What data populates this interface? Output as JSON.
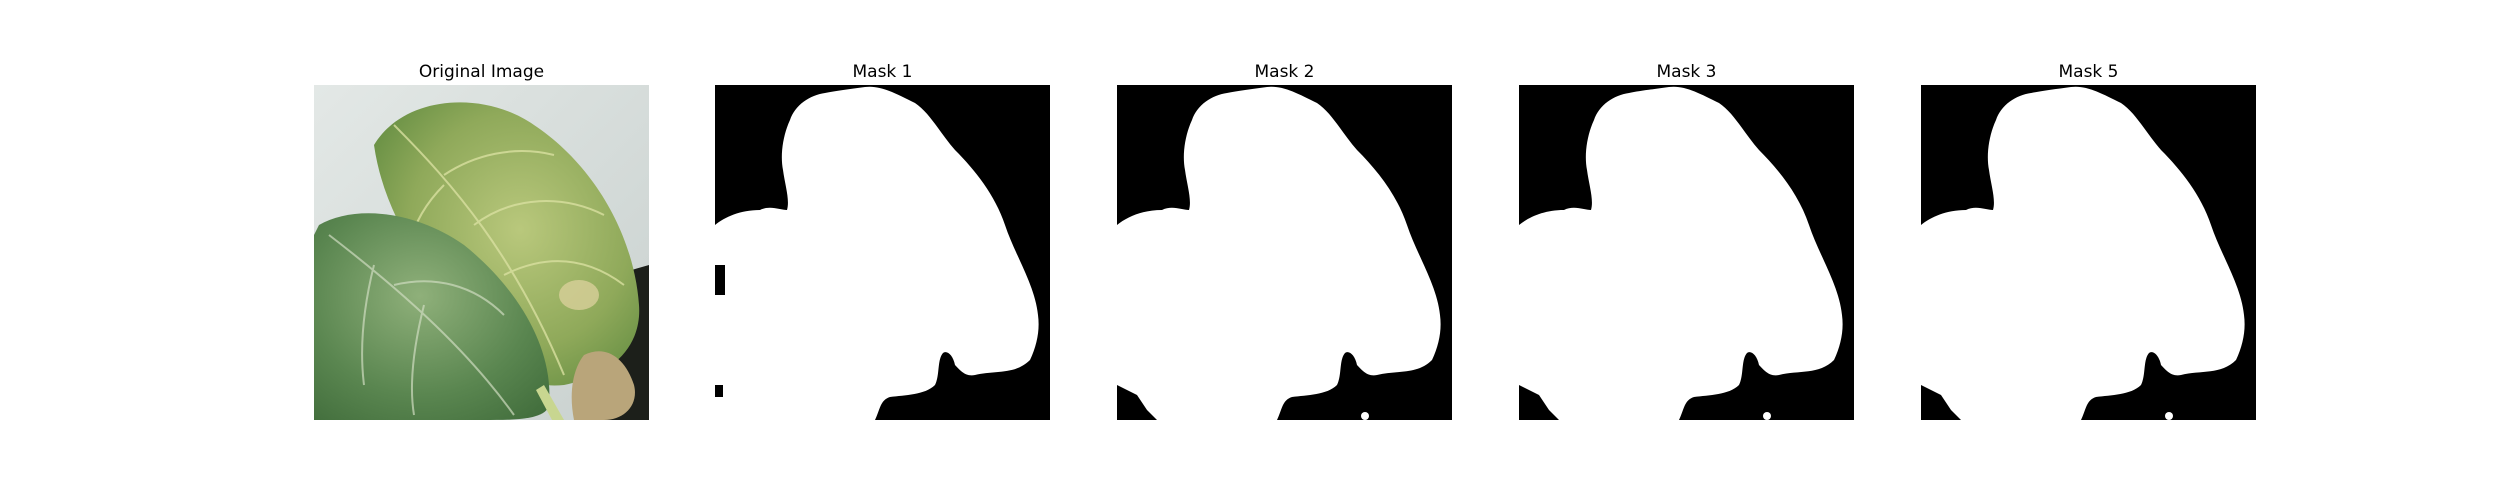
{
  "figure": {
    "panels": [
      {
        "title": "Original Image",
        "kind": "photo"
      },
      {
        "title": "Mask 1",
        "kind": "mask"
      },
      {
        "title": "Mask 2",
        "kind": "mask"
      },
      {
        "title": "Mask 3",
        "kind": "mask"
      },
      {
        "title": "Mask 5",
        "kind": "mask"
      }
    ]
  },
  "colors": {
    "mask_background": "#000000",
    "mask_foreground": "#ffffff",
    "leaf_light": "#a8bf78",
    "leaf_dark": "#4f7a3a",
    "photo_background": "#dde3df"
  }
}
